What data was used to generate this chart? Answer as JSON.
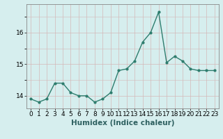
{
  "x": [
    0,
    1,
    2,
    3,
    4,
    5,
    6,
    7,
    8,
    9,
    10,
    11,
    12,
    13,
    14,
    15,
    16,
    17,
    18,
    19,
    20,
    21,
    22,
    23
  ],
  "y": [
    13.9,
    13.8,
    13.9,
    14.4,
    14.4,
    14.1,
    14.0,
    14.0,
    13.8,
    13.9,
    14.1,
    14.8,
    14.85,
    15.1,
    15.7,
    16.0,
    16.65,
    15.05,
    15.25,
    15.1,
    14.85,
    14.8,
    14.8,
    14.8
  ],
  "line_color": "#2e7d6e",
  "marker": "o",
  "markersize": 2.0,
  "linewidth": 1.0,
  "xlabel": "Humidex (Indice chaleur)",
  "xlabel_fontsize": 7.5,
  "ylim": [
    13.6,
    16.9
  ],
  "xlim": [
    -0.5,
    23.5
  ],
  "yticks": [
    14,
    15,
    16
  ],
  "xticks": [
    0,
    1,
    2,
    3,
    4,
    5,
    6,
    7,
    8,
    9,
    10,
    11,
    12,
    13,
    14,
    15,
    16,
    17,
    18,
    19,
    20,
    21,
    22,
    23
  ],
  "background_color": "#d6eeee",
  "grid_color": "#c8dada",
  "tick_fontsize": 6.5
}
